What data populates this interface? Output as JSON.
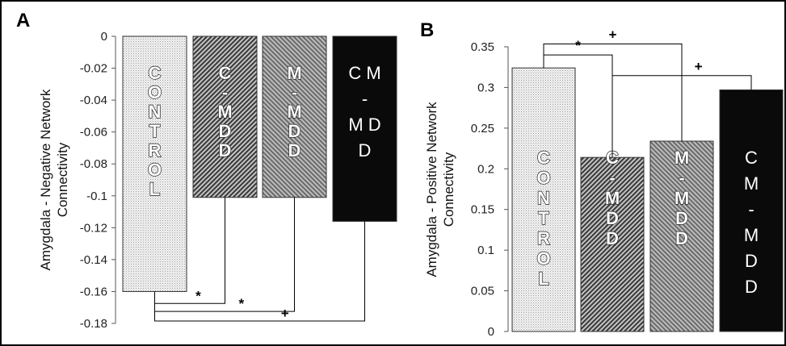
{
  "chart_data": [
    {
      "panel": "A",
      "type": "bar",
      "categories": [
        "CONTROL",
        "C-MDD",
        "M-MDD",
        "CM-MDD"
      ],
      "bar_text": [
        [
          "C",
          "O",
          "N",
          "T",
          "R",
          "O",
          "L"
        ],
        [
          "C",
          "-",
          "M",
          "D",
          "D"
        ],
        [
          "M",
          "-",
          "M",
          "D",
          "D"
        ],
        [
          "C M",
          "-",
          "M D",
          "D"
        ]
      ],
      "values": [
        -0.16,
        -0.101,
        -0.101,
        -0.116
      ],
      "ylabel": [
        "Amygdala - Negative Network",
        "Connectivity"
      ],
      "ylim": [
        -0.18,
        0
      ],
      "yticks": [
        "0",
        "-0.02",
        "-0.04",
        "-0.06",
        "-0.08",
        "-0.1",
        "-0.12",
        "-0.14",
        "-0.16",
        "-0.18"
      ],
      "ytick_values": [
        0,
        -0.02,
        -0.04,
        -0.06,
        -0.08,
        -0.1,
        -0.12,
        -0.14,
        -0.16,
        -0.18
      ],
      "fills": [
        "dots-light",
        "hatch-dark",
        "hatch-medium",
        "solid-black"
      ],
      "comparisons": [
        {
          "from": 0,
          "to": 1,
          "label": "*",
          "level": -0.1675
        },
        {
          "from": 0,
          "to": 2,
          "label": "*",
          "level": -0.1725
        },
        {
          "from": 0,
          "to": 3,
          "label": "+",
          "level": -0.1785
        }
      ]
    },
    {
      "panel": "B",
      "type": "bar",
      "categories": [
        "CONTROL",
        "C-MDD",
        "M-MDD",
        "CM-MDD"
      ],
      "bar_text": [
        [
          "C",
          "O",
          "N",
          "T",
          "R",
          "O",
          "L"
        ],
        [
          "C",
          "-",
          "M",
          "D",
          "D"
        ],
        [
          "M",
          "-",
          "M",
          "D",
          "D"
        ],
        [
          "C",
          "M",
          "-",
          "M",
          "D",
          "D"
        ]
      ],
      "values": [
        0.324,
        0.214,
        0.234,
        0.297
      ],
      "ylabel": [
        "Amygdala - Positive Network",
        "Connectivity"
      ],
      "ylim": [
        0,
        0.35
      ],
      "yticks": [
        "0",
        "0.05",
        "0.1",
        "0.15",
        "0.2",
        "0.25",
        "0.3",
        "0.35"
      ],
      "ytick_values": [
        0,
        0.05,
        0.1,
        0.15,
        0.2,
        0.25,
        0.3,
        0.35
      ],
      "fills": [
        "dots-light",
        "hatch-dark",
        "hatch-medium",
        "solid-black"
      ],
      "comparisons": [
        {
          "from": 0,
          "to": 1,
          "label": "*",
          "level": 0.34
        },
        {
          "from": 0,
          "to": 2,
          "label": "+",
          "level": 0.3535
        },
        {
          "from": 1,
          "to": 3,
          "label": "+",
          "level": 0.3145
        }
      ]
    }
  ]
}
